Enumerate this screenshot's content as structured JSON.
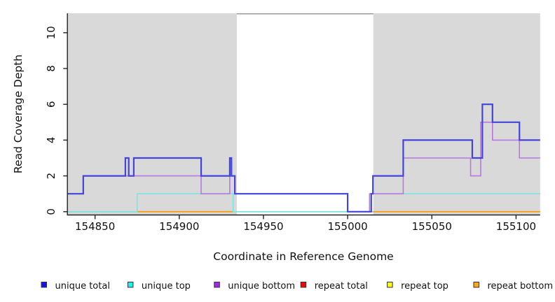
{
  "figure": {
    "x_axis": {
      "label": "Coordinate in Reference Genome",
      "ticks": [
        154850,
        154900,
        154950,
        155000,
        155050,
        155100
      ]
    },
    "y_axis": {
      "label": "Read Coverage Depth",
      "ticks": [
        0,
        2,
        4,
        6,
        8,
        10
      ]
    }
  },
  "chart_data": {
    "type": "line",
    "subtype": "step-coverage",
    "title": "",
    "xlabel": "Coordinate in Reference Genome",
    "ylabel": "Read Coverage Depth",
    "xlim": [
      154833.3,
      155114.3
    ],
    "ylim": [
      0,
      11.1
    ],
    "x_ticks": [
      154850,
      154900,
      154950,
      155000,
      155050,
      155100
    ],
    "y_ticks": [
      0,
      2,
      4,
      6,
      8,
      10
    ],
    "grid": false,
    "legend_position": "bottom",
    "background_color": "#FFFFFF",
    "shaded_regions": [
      {
        "name": "left-gray-region",
        "x0": 154833.3,
        "x1": 154934.2,
        "color": "#D9D9D9"
      },
      {
        "name": "right-gray-region",
        "x0": 155015.2,
        "x1": 155114.3,
        "color": "#D9D9D9"
      }
    ],
    "gap_top_marker": {
      "x0": 154934.2,
      "x1": 155015.2,
      "color": "#999999"
    },
    "series": [
      {
        "name": "unique total",
        "color": "#4444D9",
        "width": 2.2,
        "points": [
          [
            154833.3,
            1
          ],
          [
            154843,
            2
          ],
          [
            154868,
            3
          ],
          [
            154870,
            2
          ],
          [
            154873,
            3
          ],
          [
            154913,
            2
          ],
          [
            154930,
            3
          ],
          [
            154931,
            2
          ],
          [
            154933,
            1
          ],
          [
            155000,
            0
          ],
          [
            155014,
            1
          ],
          [
            155015,
            2
          ],
          [
            155033,
            4
          ],
          [
            155074,
            3
          ],
          [
            155080,
            6
          ],
          [
            155086,
            5
          ],
          [
            155102,
            4
          ]
        ],
        "end": 155114.3
      },
      {
        "name": "unique top",
        "color": "#7AE5E1",
        "width": 1.6,
        "points": [
          [
            154833.3,
            0
          ],
          [
            154875,
            1
          ],
          [
            154932,
            0
          ],
          [
            155014,
            1
          ]
        ],
        "end": 155114.3
      },
      {
        "name": "unique bottom",
        "color": "#B878E0",
        "width": 1.6,
        "points": [
          [
            154833.3,
            1
          ],
          [
            154843,
            2
          ],
          [
            154913,
            1
          ],
          [
            154930,
            2
          ],
          [
            154933,
            1
          ],
          [
            155000,
            0
          ],
          [
            155013,
            1
          ],
          [
            155033,
            3
          ],
          [
            155073,
            2
          ],
          [
            155079,
            5
          ],
          [
            155086,
            4
          ],
          [
            155102,
            3
          ]
        ],
        "end": 155114.3
      }
    ],
    "baseline_segments": [
      {
        "name": "green-baseline-blend",
        "y": 0,
        "color": "#90CC90",
        "width": 1.6,
        "segments": [
          [
            154833.3,
            154875
          ],
          [
            154932,
            155015.2
          ]
        ]
      },
      {
        "name": "repeat bottom",
        "y": 0,
        "color": "#FA9E1B",
        "width": 1.8,
        "segments": [
          [
            154875,
            154932
          ],
          [
            155015.2,
            155114.3
          ]
        ]
      }
    ],
    "legend": [
      {
        "label": "unique total",
        "color": "#1414F0"
      },
      {
        "label": "unique top",
        "color": "#20F0F0"
      },
      {
        "label": "unique bottom",
        "color": "#A428E8"
      },
      {
        "label": "repeat total",
        "color": "#EE0A0A"
      },
      {
        "label": "repeat top",
        "color": "#FAFA14"
      },
      {
        "label": "repeat bottom",
        "color": "#FFA51E"
      }
    ]
  }
}
